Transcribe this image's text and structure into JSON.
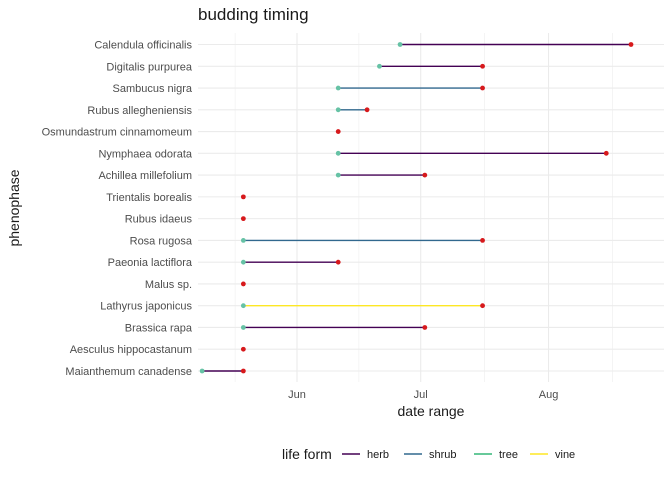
{
  "chart_data": {
    "type": "dumbbell",
    "title": "budding timing",
    "xlabel": "date range",
    "ylabel": "phenophase",
    "x_ticks": [
      "Jun",
      "Jul",
      "Aug"
    ],
    "x_tick_dates": [
      "2000-06-01",
      "2000-07-01",
      "2000-08-01"
    ],
    "xlim": [
      "2000-05-08",
      "2000-08-29"
    ],
    "grid": true,
    "legend": {
      "title": "life form",
      "position": "bottom",
      "entries": [
        "herb",
        "shrub",
        "tree",
        "vine"
      ]
    },
    "colors": {
      "herb": "#440154",
      "shrub": "#31688e",
      "tree": "#35b779",
      "vine": "#fde725",
      "start_point": "#66c2a5",
      "end_point": "#d7191c"
    },
    "rows": [
      {
        "species": "Calendula officinalis",
        "life_form": "herb",
        "start": "2000-06-26",
        "end": "2000-08-21"
      },
      {
        "species": "Digitalis purpurea",
        "life_form": "herb",
        "start": "2000-06-21",
        "end": "2000-07-16"
      },
      {
        "species": "Sambucus nigra",
        "life_form": "shrub",
        "start": "2000-06-11",
        "end": "2000-07-16"
      },
      {
        "species": "Rubus allegheniensis",
        "life_form": "shrub",
        "start": "2000-06-11",
        "end": "2000-06-18"
      },
      {
        "species": "Osmundastrum cinnamomeum",
        "life_form": "herb",
        "start": "2000-06-11",
        "end": "2000-06-11"
      },
      {
        "species": "Nymphaea odorata",
        "life_form": "herb",
        "start": "2000-06-11",
        "end": "2000-08-15"
      },
      {
        "species": "Achillea millefolium",
        "life_form": "herb",
        "start": "2000-06-11",
        "end": "2000-07-02"
      },
      {
        "species": "Trientalis borealis",
        "life_form": "herb",
        "start": "2000-05-19",
        "end": "2000-05-19"
      },
      {
        "species": "Rubus idaeus",
        "life_form": "shrub",
        "start": "2000-05-19",
        "end": "2000-05-19"
      },
      {
        "species": "Rosa rugosa",
        "life_form": "shrub",
        "start": "2000-05-19",
        "end": "2000-07-16"
      },
      {
        "species": "Paeonia lactiflora",
        "life_form": "herb",
        "start": "2000-05-19",
        "end": "2000-06-11"
      },
      {
        "species": "Malus sp.",
        "life_form": "tree",
        "start": "2000-05-19",
        "end": "2000-05-19"
      },
      {
        "species": "Lathyrus japonicus",
        "life_form": "vine",
        "start": "2000-05-19",
        "end": "2000-07-16"
      },
      {
        "species": "Brassica rapa",
        "life_form": "herb",
        "start": "2000-05-19",
        "end": "2000-07-02"
      },
      {
        "species": "Aesculus hippocastanum",
        "life_form": "tree",
        "start": "2000-05-19",
        "end": "2000-05-19"
      },
      {
        "species": "Maianthemum canadense",
        "life_form": "herb",
        "start": "2000-05-09",
        "end": "2000-05-19"
      }
    ]
  }
}
